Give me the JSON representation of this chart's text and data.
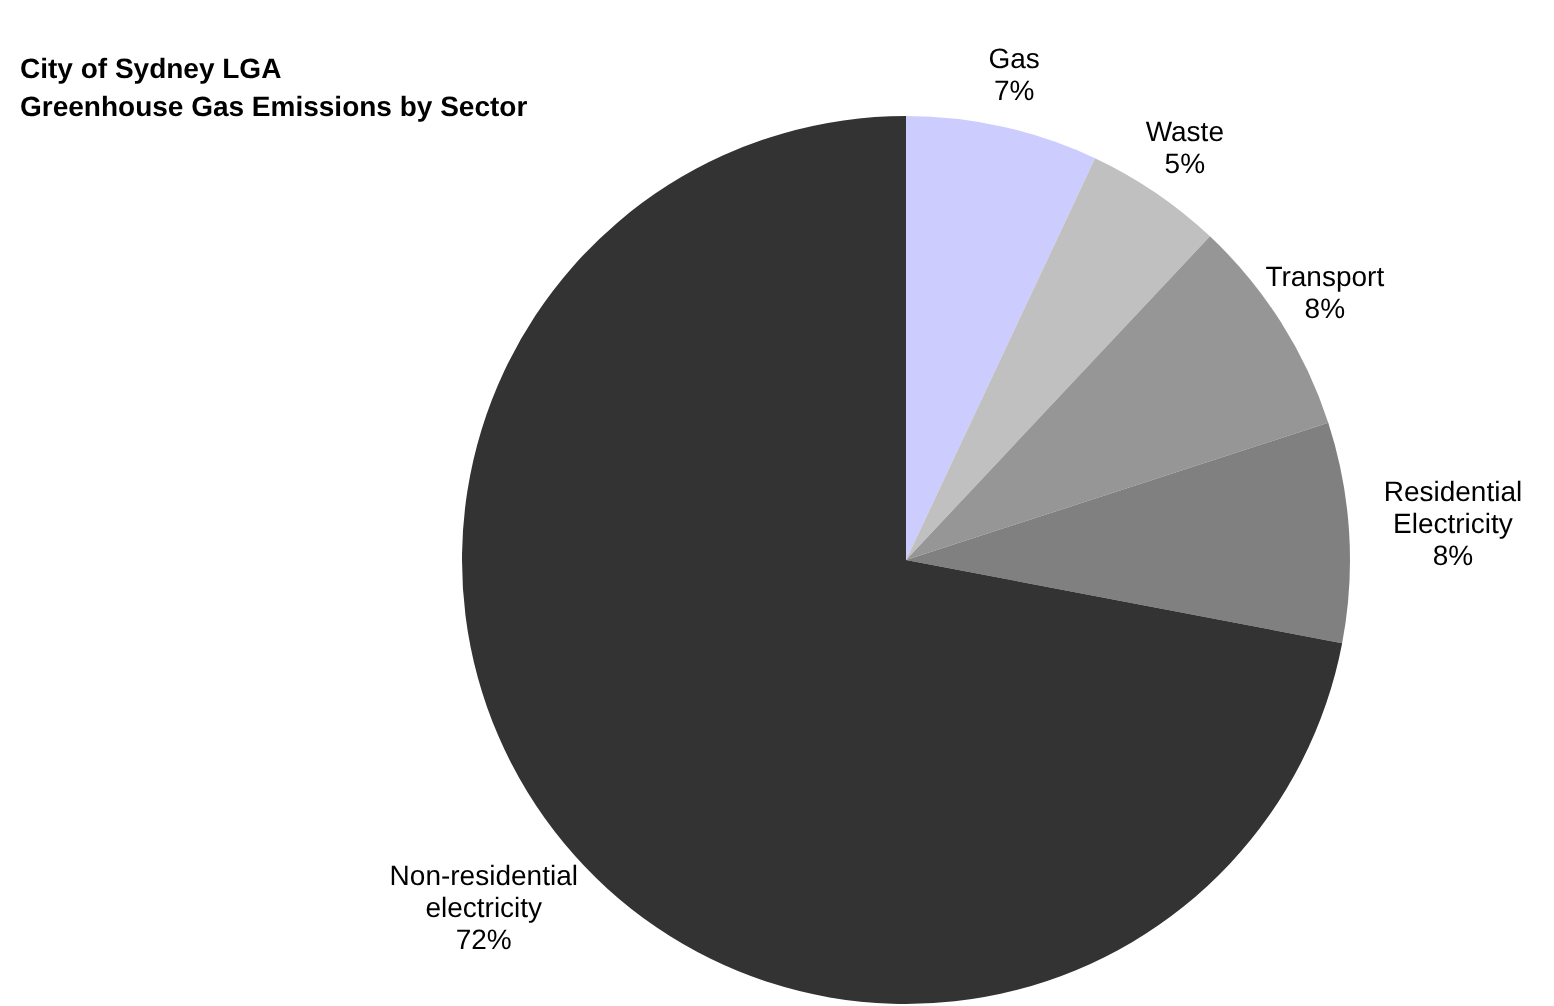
{
  "chart_data": {
    "type": "pie",
    "title": "City of Sydney LGA\nGreenhouse Gas Emissions by Sector",
    "categories": [
      "Gas",
      "Waste",
      "Transport",
      "Residential Electricity",
      "Non-residential electricity"
    ],
    "values": [
      7,
      5,
      8,
      8,
      72
    ],
    "colors": [
      "#ccccff",
      "#c0c0c0",
      "#969696",
      "#808080",
      "#333333"
    ],
    "value_labels": [
      "7%",
      "5%",
      "8%",
      "8%",
      "72%"
    ],
    "legend": false
  }
}
